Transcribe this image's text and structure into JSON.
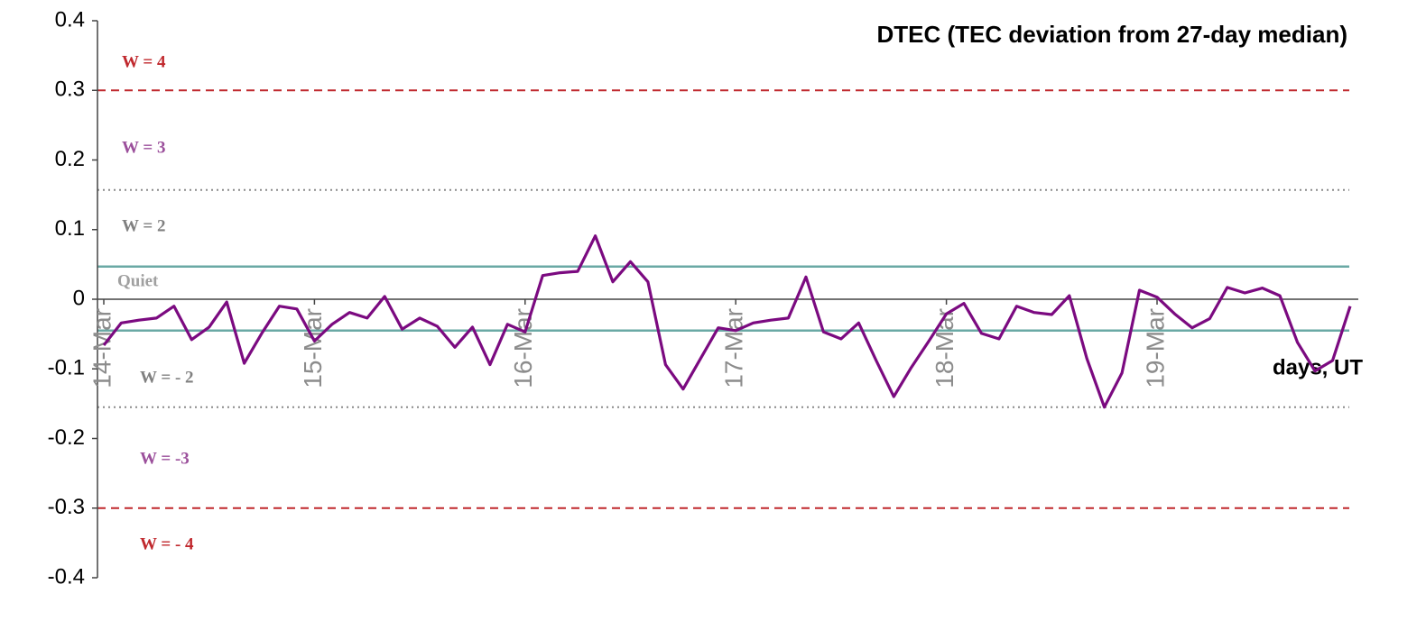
{
  "chart_data": {
    "type": "line",
    "title": "DTEC (TEC deviation from 27-day median)",
    "x_label": "days, UT",
    "categories": [
      "14-Mar",
      null,
      null,
      null,
      null,
      null,
      null,
      null,
      null,
      null,
      null,
      null,
      "15-Mar",
      null,
      null,
      null,
      null,
      null,
      null,
      null,
      null,
      null,
      null,
      null,
      "16-Mar",
      null,
      null,
      null,
      null,
      null,
      null,
      null,
      null,
      null,
      null,
      null,
      "17-Mar",
      null,
      null,
      null,
      null,
      null,
      null,
      null,
      null,
      null,
      null,
      null,
      "18-Mar",
      null,
      null,
      null,
      null,
      null,
      null,
      null,
      null,
      null,
      null,
      null,
      "19-Mar",
      null,
      null,
      null,
      null,
      null,
      null,
      null,
      null,
      null,
      null,
      null
    ],
    "series": [
      {
        "color": "#7b0a80",
        "values": [
          -0.066,
          -0.034,
          -0.03,
          -0.027,
          -0.01,
          -0.058,
          -0.04,
          -0.004,
          -0.092,
          -0.049,
          -0.01,
          -0.014,
          -0.06,
          -0.036,
          -0.019,
          -0.027,
          0.004,
          -0.043,
          -0.027,
          -0.039,
          -0.069,
          -0.04,
          -0.094,
          -0.036,
          -0.047,
          0.034,
          0.038,
          0.04,
          0.091,
          0.025,
          0.054,
          0.025,
          -0.094,
          -0.129,
          -0.085,
          -0.041,
          -0.045,
          -0.034,
          -0.03,
          -0.027,
          0.032,
          -0.047,
          -0.057,
          -0.034,
          -0.088,
          -0.14,
          -0.098,
          -0.06,
          -0.021,
          -0.006,
          -0.049,
          -0.057,
          -0.01,
          -0.019,
          -0.022,
          0.005,
          -0.085,
          -0.155,
          -0.106,
          0.013,
          0.003,
          -0.021,
          -0.041,
          -0.028,
          0.017,
          0.009,
          0.016,
          0.005,
          -0.062,
          -0.103,
          -0.088,
          -0.01
        ]
      }
    ],
    "ylim": [
      -0.4,
      0.4
    ],
    "yticks": [
      -0.4,
      -0.3,
      -0.2,
      -0.1,
      0,
      0.1,
      0.2,
      0.3,
      0.4
    ],
    "grid": false,
    "thresholds": [
      {
        "value": 0.3,
        "color": "#c0282d",
        "style": "dashed"
      },
      {
        "value": 0.157,
        "color": "#8a8a8a",
        "style": "dotted"
      },
      {
        "value": 0.047,
        "color": "#6aa9a5",
        "style": "solid"
      },
      {
        "value": -0.045,
        "color": "#6aa9a5",
        "style": "solid"
      },
      {
        "value": -0.155,
        "color": "#8a8a8a",
        "style": "dotted"
      },
      {
        "value": -0.3,
        "color": "#c0282d",
        "style": "dashed"
      }
    ],
    "bands": [
      {
        "label": "W = 4",
        "color": "#c0282d"
      },
      {
        "label": "W = 3",
        "color": "#9b4f9b"
      },
      {
        "label": "W = 2",
        "color": "#808080"
      },
      {
        "label": "Quiet",
        "color": "#a0a0a0"
      },
      {
        "label": "W = - 2",
        "color": "#808080"
      },
      {
        "label": "W = -3",
        "color": "#9b4f9b"
      },
      {
        "label": "W = - 4",
        "color": "#c0282d"
      }
    ]
  }
}
